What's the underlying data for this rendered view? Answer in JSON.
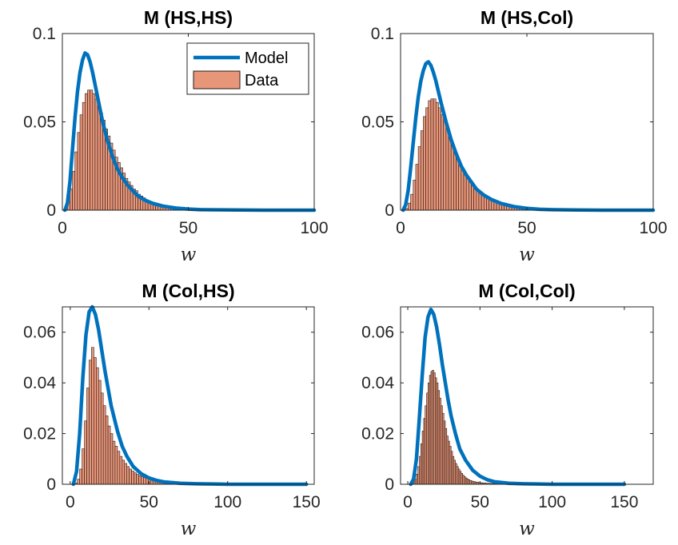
{
  "colors": {
    "model": "#0072BD",
    "data_fill": "#E8967A",
    "data_edge": "#2a1a14",
    "axis": "#262626"
  },
  "legend": {
    "model_label": "Model",
    "data_label": "Data",
    "placement": "top-right",
    "panel": 0
  },
  "chart_data": [
    {
      "type": "bar",
      "title": "M (HS,HS)",
      "xlabel": "w",
      "ylabel": "",
      "xlim": [
        0,
        100
      ],
      "ylim": [
        0,
        0.1
      ],
      "xticks": [
        0,
        50,
        100
      ],
      "xtick_labels": [
        "0",
        "50",
        "100"
      ],
      "yticks": [
        0,
        0.05,
        0.1
      ],
      "ytick_labels": [
        "0",
        "0.05",
        "0.1"
      ],
      "grid": false,
      "series": [
        {
          "name": "Model",
          "kind": "line",
          "x": [
            1,
            2,
            3,
            4,
            5,
            6,
            7,
            8,
            9,
            10,
            11,
            12,
            13,
            14,
            15,
            16,
            18,
            20,
            22,
            24,
            26,
            28,
            30,
            33,
            36,
            40,
            45,
            50,
            55,
            60,
            70,
            80,
            90,
            100
          ],
          "y": [
            0.0,
            0.004,
            0.016,
            0.034,
            0.052,
            0.067,
            0.078,
            0.085,
            0.089,
            0.088,
            0.084,
            0.078,
            0.071,
            0.064,
            0.057,
            0.05,
            0.039,
            0.03,
            0.023,
            0.018,
            0.014,
            0.011,
            0.008,
            0.0055,
            0.0038,
            0.0023,
            0.0012,
            0.0006,
            0.0003,
            0.0002,
            0.0001,
            0.0,
            0.0,
            0.0
          ]
        },
        {
          "name": "Data",
          "kind": "histogram",
          "bin_width": 1,
          "bin_start": 1,
          "values": [
            0.002,
            0.005,
            0.012,
            0.022,
            0.033,
            0.044,
            0.054,
            0.061,
            0.066,
            0.068,
            0.068,
            0.066,
            0.063,
            0.059,
            0.055,
            0.051,
            0.046,
            0.042,
            0.038,
            0.034,
            0.03,
            0.027,
            0.024,
            0.021,
            0.018,
            0.016,
            0.014,
            0.012,
            0.011,
            0.009,
            0.008,
            0.007,
            0.006,
            0.005,
            0.0045,
            0.004,
            0.0035,
            0.003,
            0.0025,
            0.002,
            0.0018,
            0.0015,
            0.0013,
            0.0011,
            0.001,
            0.0008,
            0.0007,
            0.0006,
            0.0005,
            0.0004
          ]
        }
      ]
    },
    {
      "type": "bar",
      "title": "M (HS,Col)",
      "xlabel": "w",
      "ylabel": "",
      "xlim": [
        0,
        100
      ],
      "ylim": [
        0,
        0.1
      ],
      "xticks": [
        0,
        50,
        100
      ],
      "xtick_labels": [
        "0",
        "50",
        "100"
      ],
      "yticks": [
        0,
        0.05,
        0.1
      ],
      "ytick_labels": [
        "0",
        "0.05",
        "0.1"
      ],
      "grid": false,
      "series": [
        {
          "name": "Model",
          "kind": "line",
          "x": [
            1,
            2,
            3,
            4,
            5,
            6,
            7,
            8,
            9,
            10,
            11,
            12,
            13,
            14,
            15,
            16,
            18,
            20,
            22,
            24,
            26,
            28,
            30,
            33,
            36,
            40,
            45,
            50,
            55,
            60,
            70,
            80,
            90,
            100
          ],
          "y": [
            0.0,
            0.003,
            0.011,
            0.024,
            0.038,
            0.052,
            0.064,
            0.073,
            0.079,
            0.083,
            0.084,
            0.082,
            0.078,
            0.073,
            0.067,
            0.061,
            0.05,
            0.04,
            0.032,
            0.025,
            0.02,
            0.016,
            0.012,
            0.0085,
            0.006,
            0.0037,
            0.002,
            0.001,
            0.0005,
            0.0003,
            0.0001,
            0.0,
            0.0,
            0.0
          ]
        },
        {
          "name": "Data",
          "kind": "histogram",
          "bin_width": 1,
          "bin_start": 2,
          "values": [
            0.001,
            0.004,
            0.009,
            0.017,
            0.026,
            0.036,
            0.045,
            0.053,
            0.058,
            0.062,
            0.063,
            0.063,
            0.061,
            0.058,
            0.054,
            0.05,
            0.046,
            0.042,
            0.038,
            0.034,
            0.03,
            0.027,
            0.024,
            0.021,
            0.019,
            0.017,
            0.015,
            0.013,
            0.011,
            0.01,
            0.009,
            0.008,
            0.007,
            0.006,
            0.005,
            0.0045,
            0.004,
            0.0035,
            0.003,
            0.0025,
            0.002,
            0.0017,
            0.0014,
            0.0012,
            0.001,
            0.0008,
            0.0006,
            0.0005,
            0.0004,
            0.0003
          ]
        }
      ]
    },
    {
      "type": "bar",
      "title": "M (Col,HS)",
      "xlabel": "w",
      "ylabel": "",
      "xlim": [
        -5,
        155
      ],
      "ylim": [
        0,
        0.07
      ],
      "xticks": [
        0,
        50,
        100,
        150
      ],
      "xtick_labels": [
        "0",
        "50",
        "100",
        "150"
      ],
      "yticks": [
        0,
        0.02,
        0.04,
        0.06
      ],
      "ytick_labels": [
        "0",
        "0.02",
        "0.04",
        "0.06"
      ],
      "grid": false,
      "series": [
        {
          "name": "Model",
          "kind": "line",
          "x": [
            2,
            4,
            6,
            8,
            10,
            12,
            14,
            16,
            18,
            20,
            22,
            24,
            26,
            28,
            30,
            33,
            36,
            40,
            45,
            50,
            55,
            60,
            70,
            80,
            90,
            100,
            120,
            150
          ],
          "y": [
            0.0,
            0.005,
            0.02,
            0.042,
            0.059,
            0.068,
            0.07,
            0.067,
            0.061,
            0.053,
            0.045,
            0.038,
            0.031,
            0.026,
            0.021,
            0.015,
            0.011,
            0.007,
            0.0042,
            0.0025,
            0.0015,
            0.0009,
            0.0004,
            0.0002,
            0.0001,
            0.0,
            0.0,
            0.0
          ]
        },
        {
          "name": "Data",
          "kind": "histogram",
          "bin_width": 1.5,
          "bin_start": 3,
          "values": [
            0.0005,
            0.002,
            0.006,
            0.014,
            0.025,
            0.038,
            0.049,
            0.054,
            0.05,
            0.046,
            0.041,
            0.036,
            0.031,
            0.027,
            0.023,
            0.02,
            0.017,
            0.015,
            0.013,
            0.011,
            0.0095,
            0.0082,
            0.007,
            0.006,
            0.0052,
            0.0045,
            0.0039,
            0.0034,
            0.003,
            0.0026,
            0.0023,
            0.002,
            0.0017,
            0.0015,
            0.0013,
            0.0011,
            0.001,
            0.0009,
            0.0008,
            0.0007,
            0.0006,
            0.0005,
            0.0004,
            0.0004,
            0.0003,
            0.0003
          ]
        }
      ]
    },
    {
      "type": "bar",
      "title": "M (Col,Col)",
      "xlabel": "w",
      "ylabel": "",
      "xlim": [
        -5,
        170
      ],
      "ylim": [
        0,
        0.07
      ],
      "xticks": [
        0,
        50,
        100,
        150
      ],
      "xtick_labels": [
        "0",
        "50",
        "100",
        "150"
      ],
      "yticks": [
        0,
        0.02,
        0.04,
        0.06
      ],
      "ytick_labels": [
        "0",
        "0.02",
        "0.04",
        "0.06"
      ],
      "grid": false,
      "series": [
        {
          "name": "Model",
          "kind": "line",
          "x": [
            2,
            4,
            6,
            8,
            10,
            12,
            14,
            16,
            18,
            20,
            22,
            24,
            26,
            28,
            30,
            33,
            36,
            40,
            45,
            50,
            55,
            60,
            70,
            80,
            90,
            100,
            120,
            150
          ],
          "y": [
            0.0,
            0.002,
            0.01,
            0.026,
            0.043,
            0.058,
            0.066,
            0.069,
            0.067,
            0.062,
            0.055,
            0.047,
            0.04,
            0.033,
            0.027,
            0.02,
            0.014,
            0.0095,
            0.0055,
            0.0032,
            0.0018,
            0.001,
            0.0004,
            0.0002,
            0.0001,
            0.0,
            0.0,
            0.0
          ]
        },
        {
          "name": "Data",
          "kind": "histogram",
          "bin_width": 1,
          "bin_start": 3,
          "values": [
            0.0003,
            0.001,
            0.002,
            0.004,
            0.007,
            0.011,
            0.016,
            0.021,
            0.026,
            0.031,
            0.036,
            0.04,
            0.043,
            0.0445,
            0.045,
            0.044,
            0.042,
            0.04,
            0.037,
            0.034,
            0.031,
            0.028,
            0.025,
            0.022,
            0.019,
            0.017,
            0.015,
            0.013,
            0.011,
            0.0095,
            0.0082,
            0.007,
            0.006,
            0.0051,
            0.0043,
            0.0036,
            0.003,
            0.0025,
            0.0021,
            0.0018,
            0.0015,
            0.0013,
            0.0011,
            0.001,
            0.0009,
            0.0008,
            0.0007,
            0.0006,
            0.0006,
            0.0005,
            0.0005,
            0.0004,
            0.0004,
            0.0004,
            0.0003,
            0.0003,
            0.0003,
            0.0003,
            0.0002,
            0.0002,
            0.0002,
            0.0002,
            0.0002,
            0.0002,
            0.0002,
            0.0001,
            0.0001,
            0.0001,
            0.0001,
            0.0001
          ]
        }
      ]
    }
  ]
}
